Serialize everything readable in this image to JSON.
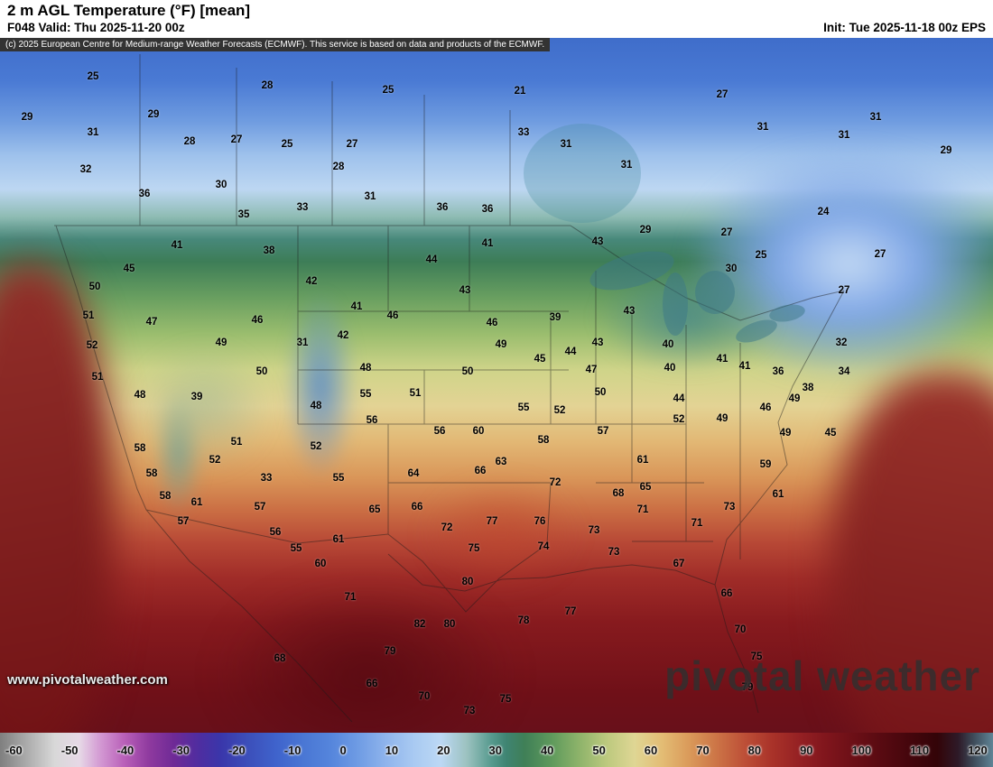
{
  "header": {
    "title": "2 m AGL Temperature (°F) [mean]",
    "valid": "F048 Valid: Thu 2025-11-20 00z",
    "init": "Init: Tue 2025-11-18 00z EPS",
    "attribution": "(c) 2025 European Centre for Medium-range Weather Forecasts (ECMWF). This service is based on data and products of the ECMWF."
  },
  "watermarks": {
    "url": "www.pivotalweather.com",
    "brand": "pivotal weather"
  },
  "chart_data": {
    "type": "heatmap",
    "title": "2 m AGL Temperature (°F) [mean]",
    "parameter": "2 m AGL Temperature",
    "units": "°F",
    "forecast_hour": "F048",
    "valid_time": "Thu 2025-11-20 00z",
    "init_time": "Tue 2025-11-18 00z",
    "model": "EPS",
    "scale": {
      "min": -60,
      "max": 120,
      "ticks": [
        "-60",
        "-50",
        "-40",
        "-30",
        "-20",
        "-10",
        "0",
        "10",
        "20",
        "30",
        "40",
        "50",
        "60",
        "70",
        "80",
        "90",
        "100",
        "110",
        "120"
      ]
    },
    "sampled_values": [
      [
        103,
        85,
        "25"
      ],
      [
        296,
        95,
        "28"
      ],
      [
        430,
        100,
        "25"
      ],
      [
        576,
        101,
        "21"
      ],
      [
        800,
        105,
        "27"
      ],
      [
        30,
        130,
        "29"
      ],
      [
        170,
        127,
        "29"
      ],
      [
        970,
        130,
        "31"
      ],
      [
        845,
        141,
        "31"
      ],
      [
        935,
        150,
        "31"
      ],
      [
        103,
        147,
        "31"
      ],
      [
        580,
        147,
        "33"
      ],
      [
        210,
        157,
        "28"
      ],
      [
        262,
        155,
        "27"
      ],
      [
        318,
        160,
        "25"
      ],
      [
        390,
        160,
        "27"
      ],
      [
        627,
        160,
        "31"
      ],
      [
        1048,
        167,
        "29"
      ],
      [
        95,
        188,
        "32"
      ],
      [
        375,
        185,
        "28"
      ],
      [
        694,
        183,
        "31"
      ],
      [
        160,
        215,
        "36"
      ],
      [
        245,
        205,
        "30"
      ],
      [
        410,
        218,
        "31"
      ],
      [
        270,
        238,
        "35"
      ],
      [
        335,
        230,
        "33"
      ],
      [
        490,
        230,
        "36"
      ],
      [
        540,
        232,
        "36"
      ],
      [
        715,
        255,
        "29"
      ],
      [
        805,
        258,
        "27"
      ],
      [
        912,
        235,
        "24"
      ],
      [
        843,
        283,
        "25"
      ],
      [
        810,
        298,
        "30"
      ],
      [
        975,
        282,
        "27"
      ],
      [
        196,
        272,
        "41"
      ],
      [
        298,
        278,
        "38"
      ],
      [
        478,
        288,
        "44"
      ],
      [
        540,
        270,
        "41"
      ],
      [
        662,
        268,
        "43"
      ],
      [
        143,
        298,
        "45"
      ],
      [
        345,
        312,
        "42"
      ],
      [
        515,
        322,
        "43"
      ],
      [
        935,
        322,
        "27"
      ],
      [
        105,
        318,
        "50"
      ],
      [
        98,
        350,
        "51"
      ],
      [
        168,
        357,
        "47"
      ],
      [
        285,
        355,
        "46"
      ],
      [
        395,
        340,
        "41"
      ],
      [
        435,
        350,
        "46"
      ],
      [
        545,
        358,
        "46"
      ],
      [
        615,
        352,
        "39"
      ],
      [
        697,
        345,
        "43"
      ],
      [
        102,
        383,
        "52"
      ],
      [
        245,
        380,
        "49"
      ],
      [
        335,
        380,
        "31"
      ],
      [
        380,
        372,
        "42"
      ],
      [
        555,
        382,
        "49"
      ],
      [
        598,
        398,
        "45"
      ],
      [
        632,
        390,
        "44"
      ],
      [
        662,
        380,
        "43"
      ],
      [
        740,
        382,
        "40"
      ],
      [
        800,
        398,
        "41"
      ],
      [
        862,
        412,
        "36"
      ],
      [
        932,
        380,
        "32"
      ],
      [
        108,
        418,
        "51"
      ],
      [
        218,
        440,
        "39"
      ],
      [
        290,
        412,
        "50"
      ],
      [
        405,
        408,
        "48"
      ],
      [
        518,
        412,
        "50"
      ],
      [
        655,
        410,
        "47"
      ],
      [
        742,
        408,
        "40"
      ],
      [
        825,
        406,
        "41"
      ],
      [
        895,
        430,
        "38"
      ],
      [
        935,
        412,
        "34"
      ],
      [
        155,
        438,
        "48"
      ],
      [
        350,
        450,
        "48"
      ],
      [
        405,
        437,
        "55"
      ],
      [
        460,
        436,
        "51"
      ],
      [
        580,
        452,
        "55"
      ],
      [
        620,
        455,
        "52"
      ],
      [
        665,
        435,
        "50"
      ],
      [
        752,
        442,
        "44"
      ],
      [
        800,
        464,
        "49"
      ],
      [
        848,
        452,
        "46"
      ],
      [
        880,
        442,
        "49"
      ],
      [
        412,
        466,
        "56"
      ],
      [
        487,
        478,
        "56"
      ],
      [
        530,
        478,
        "60"
      ],
      [
        602,
        488,
        "58"
      ],
      [
        668,
        478,
        "57"
      ],
      [
        752,
        465,
        "52"
      ],
      [
        870,
        480,
        "49"
      ],
      [
        920,
        480,
        "45"
      ],
      [
        155,
        497,
        "58"
      ],
      [
        262,
        490,
        "51"
      ],
      [
        350,
        495,
        "52"
      ],
      [
        555,
        512,
        "63"
      ],
      [
        532,
        522,
        "66"
      ],
      [
        615,
        535,
        "72"
      ],
      [
        712,
        510,
        "61"
      ],
      [
        848,
        515,
        "59"
      ],
      [
        168,
        525,
        "58"
      ],
      [
        238,
        510,
        "52"
      ],
      [
        295,
        530,
        "33"
      ],
      [
        375,
        530,
        "55"
      ],
      [
        458,
        525,
        "64"
      ],
      [
        685,
        547,
        "68"
      ],
      [
        715,
        540,
        "65"
      ],
      [
        862,
        548,
        "61"
      ],
      [
        183,
        550,
        "58"
      ],
      [
        218,
        557,
        "61"
      ],
      [
        288,
        562,
        "57"
      ],
      [
        415,
        565,
        "65"
      ],
      [
        462,
        562,
        "66"
      ],
      [
        545,
        578,
        "77"
      ],
      [
        598,
        578,
        "76"
      ],
      [
        658,
        588,
        "73"
      ],
      [
        712,
        565,
        "71"
      ],
      [
        772,
        580,
        "71"
      ],
      [
        808,
        562,
        "73"
      ],
      [
        203,
        578,
        "57"
      ],
      [
        305,
        590,
        "56"
      ],
      [
        495,
        585,
        "72"
      ],
      [
        328,
        608,
        "55"
      ],
      [
        375,
        598,
        "61"
      ],
      [
        525,
        608,
        "75"
      ],
      [
        602,
        606,
        "74"
      ],
      [
        680,
        612,
        "73"
      ],
      [
        752,
        625,
        "67"
      ],
      [
        355,
        625,
        "60"
      ],
      [
        388,
        662,
        "71"
      ],
      [
        518,
        645,
        "80"
      ],
      [
        805,
        658,
        "66"
      ],
      [
        465,
        692,
        "82"
      ],
      [
        498,
        692,
        "80"
      ],
      [
        580,
        688,
        "78"
      ],
      [
        632,
        678,
        "77"
      ],
      [
        820,
        698,
        "70"
      ],
      [
        432,
        722,
        "79"
      ],
      [
        310,
        730,
        "68"
      ],
      [
        838,
        728,
        "75"
      ],
      [
        412,
        758,
        "66"
      ],
      [
        470,
        772,
        "70"
      ],
      [
        828,
        762,
        "79"
      ],
      [
        520,
        788,
        "73"
      ],
      [
        560,
        775,
        "75"
      ]
    ]
  }
}
